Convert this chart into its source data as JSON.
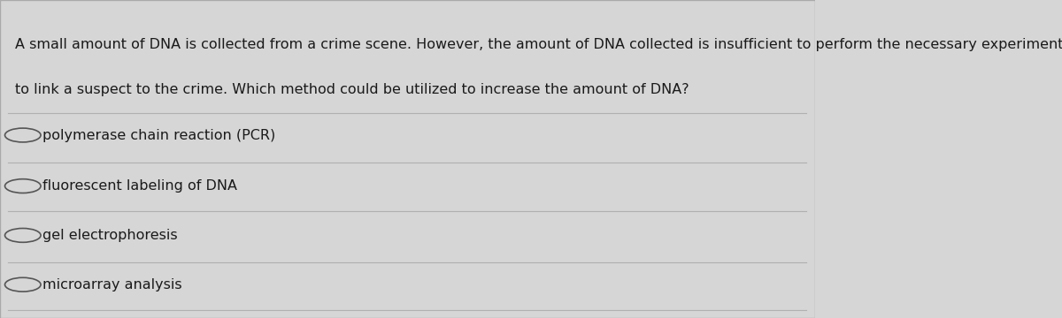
{
  "background_color": "#d6d6d6",
  "content_bg": "#e8e8e8",
  "question_text_line1": "A small amount of DNA is collected from a crime scene. However, the amount of DNA collected is insufficient to perform the necessary experiments",
  "question_text_line2": "to link a suspect to the crime. Which method could be utilized to increase the amount of DNA?",
  "options": [
    "polymerase chain reaction (PCR)",
    "fluorescent labeling of DNA",
    "gel electrophoresis",
    "microarray analysis"
  ],
  "text_color": "#1a1a1a",
  "line_color": "#b0b0b0",
  "circle_color": "#555555",
  "question_fontsize": 11.5,
  "option_fontsize": 11.5,
  "figsize": [
    12.0,
    3.6
  ],
  "dpi": 100
}
